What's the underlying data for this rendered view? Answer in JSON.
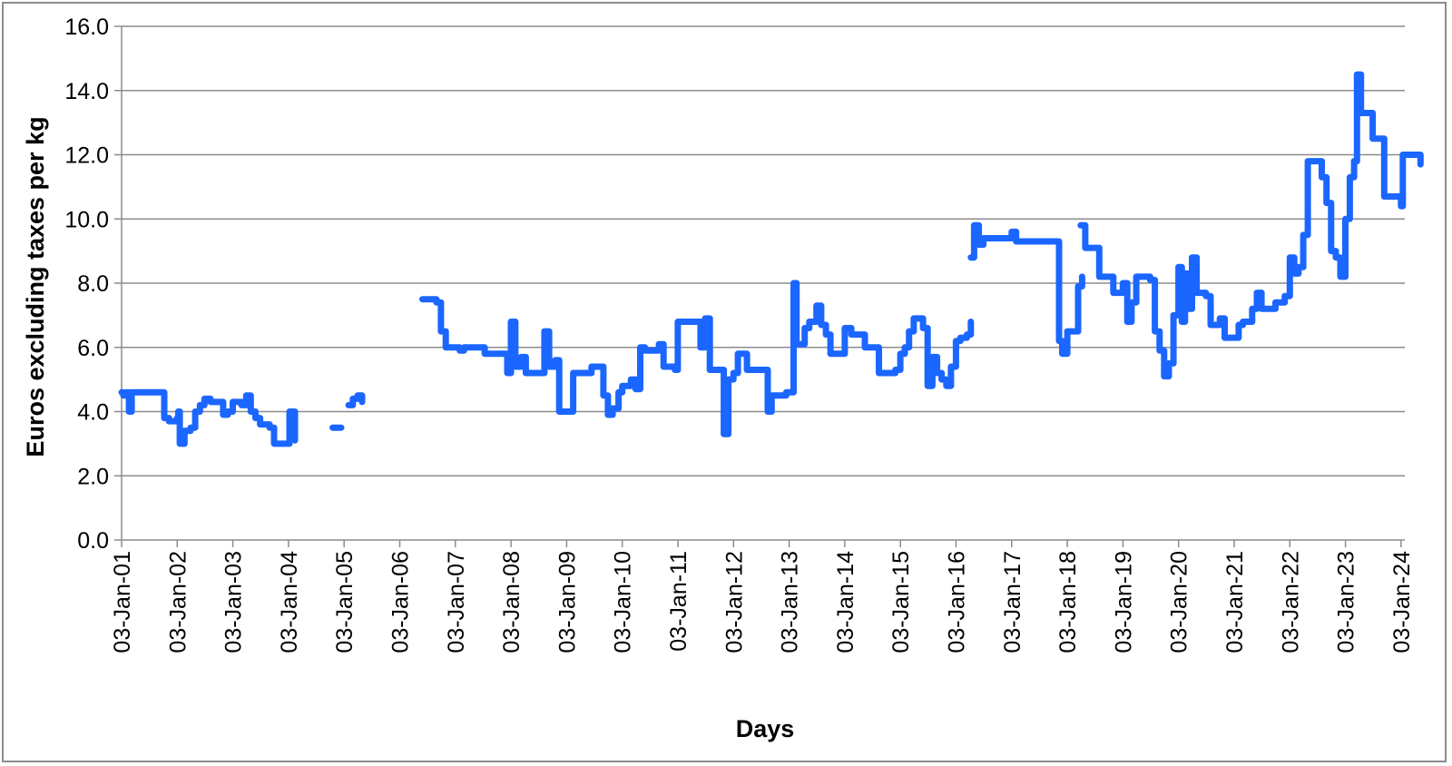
{
  "chart_data": {
    "type": "line",
    "title": "",
    "xlabel": "Days",
    "ylabel": "Euros excluding taxes per kg",
    "ylim": [
      0,
      16
    ],
    "yticks": [
      "0.0",
      "2.0",
      "4.0",
      "6.0",
      "8.0",
      "10.0",
      "12.0",
      "14.0",
      "16.0"
    ],
    "xlim": [
      "2001-01-03",
      "2024-05-15"
    ],
    "xticks": [
      "03-Jan-01",
      "03-Jan-02",
      "03-Jan-03",
      "03-Jan-04",
      "03-Jan-05",
      "03-Jan-06",
      "03-Jan-07",
      "03-Jan-08",
      "03-Jan-09",
      "03-Jan-10",
      "03-Jan-11",
      "03-Jan-12",
      "03-Jan-13",
      "03-Jan-14",
      "03-Jan-15",
      "03-Jan-16",
      "03-Jan-17",
      "03-Jan-18",
      "03-Jan-19",
      "03-Jan-20",
      "03-Jan-21",
      "03-Jan-22",
      "03-Jan-23",
      "03-Jan-24"
    ],
    "grid": true,
    "legend": "none",
    "series_color": "#1a66ff",
    "series": [
      {
        "segments": [
          [
            [
              "2001-01-03",
              4.6
            ],
            [
              "2001-01-15",
              4.5
            ],
            [
              "2001-02-05",
              4.6
            ],
            [
              "2001-02-20",
              4.0
            ],
            [
              "2001-03-10",
              4.6
            ],
            [
              "2001-05-01",
              4.6
            ],
            [
              "2001-07-01",
              4.6
            ],
            [
              "2001-09-20",
              4.6
            ],
            [
              "2001-10-10",
              3.8
            ],
            [
              "2001-11-10",
              3.7
            ],
            [
              "2002-01-03",
              3.8
            ],
            [
              "2002-01-10",
              4.0
            ],
            [
              "2002-01-20",
              3.0
            ],
            [
              "2002-02-20",
              3.4
            ],
            [
              "2002-04-01",
              3.5
            ],
            [
              "2002-05-01",
              4.0
            ],
            [
              "2002-06-01",
              4.2
            ],
            [
              "2002-07-01",
              4.4
            ],
            [
              "2002-08-10",
              4.3
            ],
            [
              "2002-10-01",
              4.3
            ],
            [
              "2002-11-01",
              3.9
            ],
            [
              "2002-12-01",
              4.0
            ],
            [
              "2003-01-03",
              4.3
            ],
            [
              "2003-03-01",
              4.2
            ],
            [
              "2003-04-01",
              4.5
            ],
            [
              "2003-05-01",
              4.0
            ],
            [
              "2003-06-01",
              3.8
            ],
            [
              "2003-07-01",
              3.6
            ],
            [
              "2003-09-01",
              3.5
            ],
            [
              "2003-10-01",
              3.0
            ],
            [
              "2003-12-20",
              3.0
            ],
            [
              "2004-01-10",
              4.0
            ],
            [
              "2004-02-15",
              3.1
            ]
          ],
          [
            [
              "2004-10-20",
              3.5
            ],
            [
              "2004-12-15",
              3.5
            ]
          ],
          [
            [
              "2005-02-01",
              4.2
            ],
            [
              "2005-03-01",
              4.4
            ],
            [
              "2005-04-01",
              4.5
            ],
            [
              "2005-05-01",
              4.3
            ]
          ],
          [
            [
              "2006-06-01",
              7.5
            ],
            [
              "2006-08-01",
              7.5
            ],
            [
              "2006-09-01",
              7.4
            ],
            [
              "2006-10-01",
              6.5
            ],
            [
              "2006-11-01",
              6.0
            ],
            [
              "2007-02-01",
              5.9
            ],
            [
              "2007-03-01",
              6.0
            ],
            [
              "2007-06-15",
              6.0
            ],
            [
              "2007-07-15",
              5.8
            ],
            [
              "2007-11-20",
              5.8
            ],
            [
              "2007-12-10",
              5.2
            ],
            [
              "2008-01-03",
              6.8
            ],
            [
              "2008-02-01",
              5.4
            ],
            [
              "2008-03-10",
              5.7
            ],
            [
              "2008-04-10",
              5.2
            ],
            [
              "2008-07-15",
              5.2
            ],
            [
              "2008-08-10",
              6.5
            ],
            [
              "2008-09-10",
              5.4
            ],
            [
              "2008-10-20",
              5.6
            ],
            [
              "2008-11-15",
              4.0
            ],
            [
              "2009-01-03",
              4.0
            ],
            [
              "2009-02-15",
              5.2
            ],
            [
              "2009-05-01",
              5.2
            ],
            [
              "2009-06-15",
              5.4
            ],
            [
              "2009-08-15",
              5.4
            ],
            [
              "2009-09-01",
              4.5
            ],
            [
              "2009-10-01",
              3.9
            ],
            [
              "2009-11-01",
              4.1
            ],
            [
              "2009-12-10",
              4.6
            ],
            [
              "2010-01-03",
              4.8
            ],
            [
              "2010-03-01",
              5.0
            ],
            [
              "2010-04-01",
              4.7
            ],
            [
              "2010-05-01",
              6.0
            ],
            [
              "2010-06-01",
              5.9
            ],
            [
              "2010-07-01",
              5.9
            ],
            [
              "2010-09-01",
              6.1
            ],
            [
              "2010-10-01",
              5.4
            ],
            [
              "2010-12-15",
              5.3
            ],
            [
              "2011-01-03",
              6.8
            ],
            [
              "2011-03-01",
              6.8
            ],
            [
              "2011-05-01",
              6.8
            ],
            [
              "2011-06-01",
              6.0
            ],
            [
              "2011-07-01",
              6.9
            ],
            [
              "2011-08-01",
              5.3
            ],
            [
              "2011-10-01",
              5.3
            ],
            [
              "2011-11-01",
              3.3
            ],
            [
              "2011-12-01",
              5.0
            ],
            [
              "2012-01-03",
              5.2
            ],
            [
              "2012-02-01",
              5.8
            ],
            [
              "2012-04-01",
              5.3
            ],
            [
              "2012-07-15",
              5.3
            ],
            [
              "2012-08-15",
              4.0
            ],
            [
              "2012-09-10",
              4.5
            ],
            [
              "2012-12-15",
              4.6
            ],
            [
              "2013-01-03",
              4.6
            ],
            [
              "2013-02-01",
              8.0
            ],
            [
              "2013-02-20",
              6.1
            ],
            [
              "2013-04-15",
              6.6
            ],
            [
              "2013-05-15",
              6.8
            ],
            [
              "2013-07-01",
              7.3
            ],
            [
              "2013-08-01",
              6.7
            ],
            [
              "2013-09-01",
              6.4
            ],
            [
              "2013-10-01",
              5.8
            ],
            [
              "2013-12-01",
              5.8
            ],
            [
              "2014-01-03",
              6.6
            ],
            [
              "2014-02-15",
              6.4
            ],
            [
              "2014-04-01",
              6.4
            ],
            [
              "2014-05-15",
              6.0
            ],
            [
              "2014-07-15",
              6.0
            ],
            [
              "2014-08-15",
              5.2
            ],
            [
              "2014-11-01",
              5.2
            ],
            [
              "2014-12-01",
              5.3
            ],
            [
              "2015-01-03",
              5.8
            ],
            [
              "2015-02-01",
              6.0
            ],
            [
              "2015-03-01",
              6.5
            ],
            [
              "2015-04-01",
              6.9
            ],
            [
              "2015-05-01",
              6.9
            ],
            [
              "2015-06-01",
              6.6
            ],
            [
              "2015-07-01",
              4.8
            ],
            [
              "2015-08-01",
              5.7
            ],
            [
              "2015-09-01",
              5.2
            ],
            [
              "2015-10-01",
              5.0
            ],
            [
              "2015-11-01",
              4.8
            ],
            [
              "2015-12-01",
              5.4
            ],
            [
              "2016-01-03",
              6.2
            ],
            [
              "2016-02-01",
              6.3
            ],
            [
              "2016-03-15",
              6.4
            ],
            [
              "2016-04-10",
              6.8
            ]
          ],
          [
            [
              "2016-04-10",
              8.8
            ],
            [
              "2016-05-01",
              9.8
            ],
            [
              "2016-06-01",
              9.2
            ],
            [
              "2016-07-01",
              9.4
            ],
            [
              "2016-09-01",
              9.4
            ],
            [
              "2016-10-01",
              9.4
            ],
            [
              "2016-12-01",
              9.4
            ],
            [
              "2017-01-03",
              9.6
            ],
            [
              "2017-02-01",
              9.3
            ],
            [
              "2017-06-01",
              9.3
            ],
            [
              "2017-10-15",
              9.3
            ],
            [
              "2017-11-10",
              6.2
            ],
            [
              "2017-12-01",
              5.8
            ],
            [
              "2018-01-03",
              6.5
            ],
            [
              "2018-02-01",
              6.5
            ],
            [
              "2018-03-15",
              7.9
            ],
            [
              "2018-04-10",
              8.2
            ]
          ],
          [
            [
              "2018-04-01",
              9.8
            ],
            [
              "2018-05-01",
              9.1
            ],
            [
              "2018-07-01",
              9.1
            ],
            [
              "2018-08-01",
              8.2
            ],
            [
              "2018-10-15",
              8.2
            ],
            [
              "2018-11-01",
              7.7
            ],
            [
              "2018-12-01",
              7.7
            ],
            [
              "2019-01-03",
              8.0
            ],
            [
              "2019-02-01",
              6.8
            ],
            [
              "2019-03-01",
              7.4
            ],
            [
              "2019-04-01",
              8.2
            ],
            [
              "2019-06-01",
              8.2
            ],
            [
              "2019-07-01",
              8.1
            ],
            [
              "2019-08-01",
              6.5
            ],
            [
              "2019-09-01",
              5.9
            ],
            [
              "2019-10-01",
              5.1
            ],
            [
              "2019-11-01",
              5.5
            ],
            [
              "2019-12-01",
              7.0
            ],
            [
              "2020-01-03",
              8.5
            ],
            [
              "2020-01-25",
              6.8
            ],
            [
              "2020-02-15",
              8.3
            ],
            [
              "2020-03-10",
              7.2
            ],
            [
              "2020-04-01",
              8.8
            ],
            [
              "2020-05-01",
              7.7
            ],
            [
              "2020-07-01",
              7.6
            ],
            [
              "2020-08-01",
              6.7
            ],
            [
              "2020-10-01",
              6.9
            ],
            [
              "2020-11-01",
              6.3
            ],
            [
              "2021-01-03",
              6.3
            ],
            [
              "2021-02-01",
              6.7
            ],
            [
              "2021-03-01",
              6.8
            ],
            [
              "2021-05-01",
              7.2
            ],
            [
              "2021-06-01",
              7.7
            ],
            [
              "2021-07-01",
              7.2
            ],
            [
              "2021-09-01",
              7.2
            ],
            [
              "2021-10-01",
              7.4
            ],
            [
              "2021-12-01",
              7.6
            ],
            [
              "2022-01-03",
              8.8
            ],
            [
              "2022-02-01",
              8.3
            ],
            [
              "2022-03-01",
              8.5
            ],
            [
              "2022-04-01",
              9.5
            ],
            [
              "2022-05-01",
              11.8
            ],
            [
              "2022-07-01",
              11.8
            ],
            [
              "2022-08-01",
              11.3
            ],
            [
              "2022-09-01",
              10.5
            ],
            [
              "2022-10-01",
              9.0
            ],
            [
              "2022-11-01",
              8.8
            ],
            [
              "2022-12-01",
              8.2
            ],
            [
              "2023-01-03",
              10.0
            ],
            [
              "2023-02-01",
              11.3
            ],
            [
              "2023-03-01",
              11.8
            ],
            [
              "2023-03-20",
              14.5
            ],
            [
              "2023-04-15",
              13.3
            ],
            [
              "2023-06-01",
              13.3
            ],
            [
              "2023-07-01",
              12.5
            ],
            [
              "2023-08-15",
              12.5
            ],
            [
              "2023-09-15",
              10.7
            ],
            [
              "2023-11-15",
              10.7
            ],
            [
              "2024-01-03",
              10.4
            ],
            [
              "2024-01-15",
              12.0
            ],
            [
              "2024-04-01",
              12.0
            ],
            [
              "2024-05-10",
              11.7
            ]
          ]
        ]
      }
    ]
  }
}
